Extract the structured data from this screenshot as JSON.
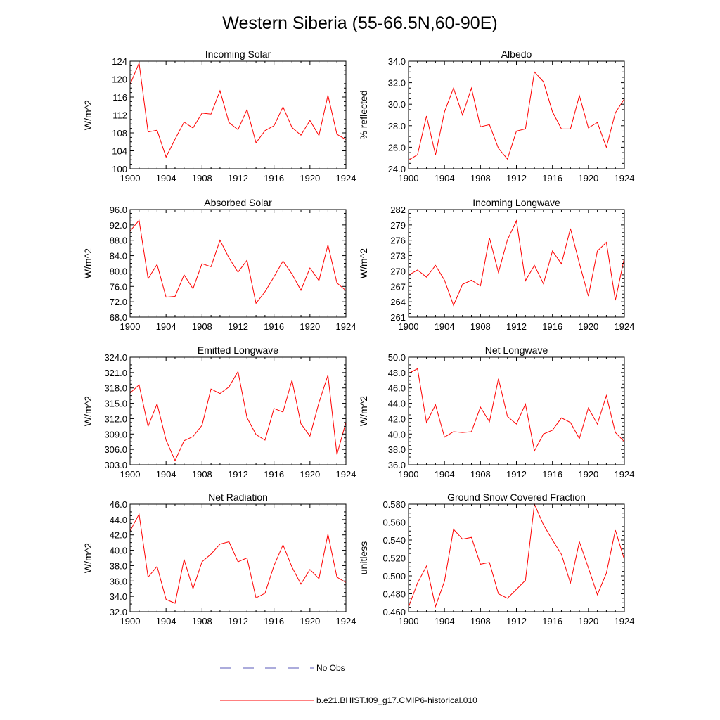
{
  "title": "Western Siberia (55-66.5N,60-90E)",
  "x_ticks": [
    "1900",
    "1904",
    "1908",
    "1912",
    "1916",
    "1920",
    "1924"
  ],
  "legend": {
    "obs_label": "No Obs",
    "model_label": "b.e21.BHIST.f09_g17.CMIP6-historical.010",
    "obs_color": "#5a5ab8",
    "model_color": "#ff0000"
  },
  "chart_data": [
    {
      "type": "line",
      "title": "Incoming Solar",
      "ylabel": "W/m^2",
      "xlim": [
        1900,
        1924
      ],
      "ylim": [
        100,
        124
      ],
      "y_ticks": [
        "100",
        "104",
        "108",
        "112",
        "116",
        "120",
        "124"
      ],
      "series": [
        {
          "name": "b.e21.BHIST.f09_g17.CMIP6-historical.010",
          "color": "#ff0000",
          "x": [
            1900,
            1901,
            1902,
            1903,
            1904,
            1905,
            1906,
            1907,
            1908,
            1909,
            1910,
            1911,
            1912,
            1913,
            1914,
            1915,
            1916,
            1917,
            1918,
            1919,
            1920,
            1921,
            1922,
            1923,
            1924
          ],
          "values": [
            118.8,
            123.6,
            108.2,
            108.6,
            102.6,
            106.6,
            110.4,
            109.1,
            112.4,
            112.2,
            117.4,
            110.3,
            108.7,
            113.2,
            105.8,
            108.5,
            109.6,
            113.8,
            109.2,
            107.5,
            110.8,
            107.4,
            116.4,
            107.7,
            106.5
          ]
        }
      ]
    },
    {
      "type": "line",
      "title": "Albedo",
      "ylabel": "% reflected",
      "xlim": [
        1900,
        1924
      ],
      "ylim": [
        24,
        34
      ],
      "y_ticks": [
        "24.0",
        "26.0",
        "28.0",
        "30.0",
        "32.0",
        "34.0"
      ],
      "series": [
        {
          "name": "b.e21.BHIST.f09_g17.CMIP6-historical.010",
          "color": "#ff0000",
          "x": [
            1900,
            1901,
            1902,
            1903,
            1904,
            1905,
            1906,
            1907,
            1908,
            1909,
            1910,
            1911,
            1912,
            1913,
            1914,
            1915,
            1916,
            1917,
            1918,
            1919,
            1920,
            1921,
            1922,
            1923,
            1924
          ],
          "values": [
            24.8,
            25.3,
            28.9,
            25.3,
            29.3,
            31.5,
            29.0,
            31.5,
            27.9,
            28.1,
            25.9,
            24.9,
            27.5,
            27.7,
            33.0,
            32.1,
            29.3,
            27.7,
            27.7,
            30.8,
            27.8,
            28.3,
            26.0,
            29.2,
            30.5
          ]
        }
      ]
    },
    {
      "type": "line",
      "title": "Absorbed Solar",
      "ylabel": "W/m^2",
      "xlim": [
        1900,
        1924
      ],
      "ylim": [
        68,
        96
      ],
      "y_ticks": [
        "68.0",
        "72.0",
        "76.0",
        "80.0",
        "84.0",
        "88.0",
        "92.0",
        "96.0"
      ],
      "series": [
        {
          "name": "b.e21.BHIST.f09_g17.CMIP6-historical.010",
          "color": "#ff0000",
          "x": [
            1900,
            1901,
            1902,
            1903,
            1904,
            1905,
            1906,
            1907,
            1908,
            1909,
            1910,
            1911,
            1912,
            1913,
            1914,
            1915,
            1916,
            1917,
            1918,
            1919,
            1920,
            1921,
            1922,
            1923,
            1924
          ],
          "values": [
            90.4,
            93.2,
            78.0,
            81.7,
            73.2,
            73.4,
            79.0,
            75.4,
            81.9,
            81.1,
            88.0,
            83.4,
            79.7,
            82.8,
            71.6,
            74.6,
            78.5,
            82.6,
            79.2,
            75.0,
            80.8,
            77.5,
            86.8,
            76.9,
            74.9
          ]
        }
      ]
    },
    {
      "type": "line",
      "title": "Incoming Longwave",
      "ylabel": "W/m^2",
      "xlim": [
        1900,
        1924
      ],
      "ylim": [
        261,
        282
      ],
      "y_ticks": [
        "261",
        "264",
        "267",
        "270",
        "273",
        "276",
        "279",
        "282"
      ],
      "series": [
        {
          "name": "b.e21.BHIST.f09_g17.CMIP6-historical.010",
          "color": "#ff0000",
          "x": [
            1900,
            1901,
            1902,
            1903,
            1904,
            1905,
            1906,
            1907,
            1908,
            1909,
            1910,
            1911,
            1912,
            1913,
            1914,
            1915,
            1916,
            1917,
            1918,
            1919,
            1920,
            1921,
            1922,
            1923,
            1924
          ],
          "values": [
            269.2,
            270.2,
            268.8,
            271.1,
            268.2,
            263.3,
            267.4,
            268.2,
            267.1,
            276.5,
            269.7,
            276.1,
            279.8,
            268.1,
            271.1,
            267.5,
            273.9,
            271.4,
            278.3,
            271.5,
            265.1,
            273.9,
            275.6,
            264.3,
            272.6
          ]
        }
      ]
    },
    {
      "type": "line",
      "title": "Emitted Longwave",
      "ylabel": "W/m^2",
      "xlim": [
        1900,
        1924
      ],
      "ylim": [
        303,
        324
      ],
      "y_ticks": [
        "303.0",
        "306.0",
        "309.0",
        "312.0",
        "315.0",
        "318.0",
        "321.0",
        "324.0"
      ],
      "series": [
        {
          "name": "b.e21.BHIST.f09_g17.CMIP6-historical.010",
          "color": "#ff0000",
          "x": [
            1900,
            1901,
            1902,
            1903,
            1904,
            1905,
            1906,
            1907,
            1908,
            1909,
            1910,
            1911,
            1912,
            1913,
            1914,
            1915,
            1916,
            1917,
            1918,
            1919,
            1920,
            1921,
            1922,
            1923,
            1924
          ],
          "values": [
            317.0,
            318.6,
            310.5,
            314.9,
            307.8,
            303.8,
            307.7,
            308.5,
            310.7,
            317.8,
            316.9,
            318.2,
            321.2,
            312.2,
            308.9,
            307.8,
            314.0,
            313.3,
            319.5,
            311.0,
            308.6,
            315.1,
            320.5,
            305.0,
            311.3
          ]
        }
      ]
    },
    {
      "type": "line",
      "title": "Net Longwave",
      "ylabel": "W/m^2",
      "xlim": [
        1900,
        1924
      ],
      "ylim": [
        36,
        50
      ],
      "y_ticks": [
        "36.0",
        "38.0",
        "40.0",
        "42.0",
        "44.0",
        "46.0",
        "48.0",
        "50.0"
      ],
      "series": [
        {
          "name": "b.e21.BHIST.f09_g17.CMIP6-historical.010",
          "color": "#ff0000",
          "x": [
            1900,
            1901,
            1902,
            1903,
            1904,
            1905,
            1906,
            1907,
            1908,
            1909,
            1910,
            1911,
            1912,
            1913,
            1914,
            1915,
            1916,
            1917,
            1918,
            1919,
            1920,
            1921,
            1922,
            1923,
            1924
          ],
          "values": [
            47.9,
            48.5,
            41.5,
            43.8,
            39.6,
            40.3,
            40.2,
            40.3,
            43.5,
            41.6,
            47.2,
            42.3,
            41.3,
            43.9,
            37.8,
            40.0,
            40.5,
            42.1,
            41.5,
            39.4,
            43.4,
            41.3,
            45.0,
            40.2,
            39.0
          ]
        }
      ]
    },
    {
      "type": "line",
      "title": "Net Radiation",
      "ylabel": "W/m^2",
      "xlim": [
        1900,
        1924
      ],
      "ylim": [
        32,
        46
      ],
      "y_ticks": [
        "32.0",
        "34.0",
        "36.0",
        "38.0",
        "40.0",
        "42.0",
        "44.0",
        "46.0"
      ],
      "series": [
        {
          "name": "b.e21.BHIST.f09_g17.CMIP6-historical.010",
          "color": "#ff0000",
          "x": [
            1900,
            1901,
            1902,
            1903,
            1904,
            1905,
            1906,
            1907,
            1908,
            1909,
            1910,
            1911,
            1912,
            1913,
            1914,
            1915,
            1916,
            1917,
            1918,
            1919,
            1920,
            1921,
            1922,
            1923,
            1924
          ],
          "values": [
            42.5,
            44.7,
            36.5,
            37.9,
            33.6,
            33.1,
            38.8,
            35.0,
            38.5,
            39.5,
            40.8,
            41.1,
            38.5,
            39.0,
            33.8,
            34.4,
            38.0,
            40.7,
            37.8,
            35.6,
            37.5,
            36.3,
            42.1,
            36.5,
            35.8
          ]
        }
      ]
    },
    {
      "type": "line",
      "title": "Ground Snow Covered Fraction",
      "ylabel": "unitless",
      "xlim": [
        1900,
        1924
      ],
      "ylim": [
        0.46,
        0.58
      ],
      "y_ticks": [
        "0.460",
        "0.480",
        "0.500",
        "0.520",
        "0.540",
        "0.560",
        "0.580"
      ],
      "series": [
        {
          "name": "b.e21.BHIST.f09_g17.CMIP6-historical.010",
          "color": "#ff0000",
          "x": [
            1900,
            1901,
            1902,
            1903,
            1904,
            1905,
            1906,
            1907,
            1908,
            1909,
            1910,
            1911,
            1912,
            1913,
            1914,
            1915,
            1916,
            1917,
            1918,
            1919,
            1920,
            1921,
            1922,
            1923,
            1924
          ],
          "values": [
            0.465,
            0.492,
            0.511,
            0.466,
            0.494,
            0.552,
            0.541,
            0.543,
            0.513,
            0.515,
            0.48,
            0.475,
            0.485,
            0.495,
            0.58,
            0.557,
            0.54,
            0.524,
            0.492,
            0.538,
            0.509,
            0.479,
            0.503,
            0.551,
            0.518
          ]
        }
      ]
    }
  ]
}
